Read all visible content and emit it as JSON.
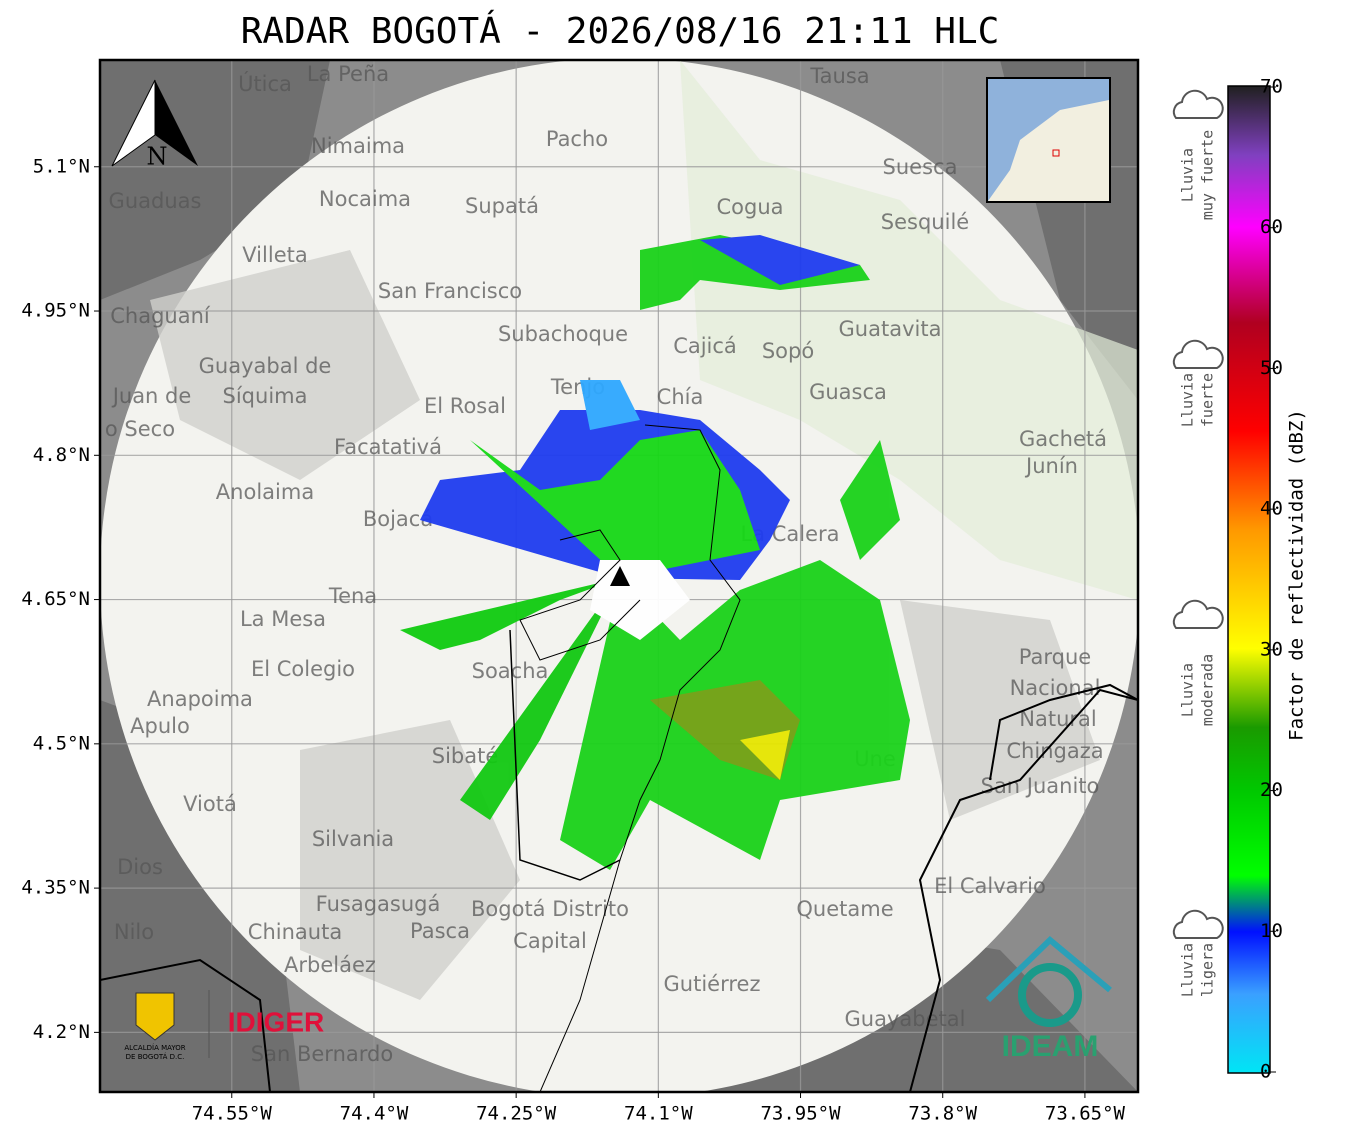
{
  "title": "RADAR BOGOTÁ - 2026/08/16 21:11 HLC",
  "map": {
    "xlim": [
      -74.689,
      -73.594
    ],
    "ylim": [
      4.138,
      5.211
    ],
    "xticks": [
      {
        "value": -74.55,
        "label": "74.55°W"
      },
      {
        "value": -74.4,
        "label": "74.4°W"
      },
      {
        "value": -74.25,
        "label": "74.25°W"
      },
      {
        "value": -74.1,
        "label": "74.1°W"
      },
      {
        "value": -73.95,
        "label": "73.95°W"
      },
      {
        "value": -73.8,
        "label": "73.8°W"
      },
      {
        "value": -73.65,
        "label": "73.65°W"
      }
    ],
    "yticks": [
      {
        "value": 5.1,
        "label": "5.1°N"
      },
      {
        "value": 4.95,
        "label": "4.95°N"
      },
      {
        "value": 4.8,
        "label": "4.8°N"
      },
      {
        "value": 4.65,
        "label": "4.65°N"
      },
      {
        "value": 4.5,
        "label": "4.5°N"
      },
      {
        "value": 4.35,
        "label": "4.35°N"
      },
      {
        "value": 4.2,
        "label": "4.2°N"
      }
    ],
    "north": "N",
    "places": [
      "La Peña",
      "Útica",
      "Tausa",
      "Pacho",
      "Nimaima",
      "Suesca",
      "Guaduas",
      "Nocaima",
      "Supatá",
      "Cogua",
      "Sesquilé",
      "Villeta",
      "San Francisco",
      "Chaguaní",
      "Guatavita",
      "Subachoque",
      "Cajicá",
      "Sopó",
      "Guayabal de",
      "Síquima",
      "El Rosal",
      "Tenjo",
      "Chía",
      "Guasca",
      "Facatativá",
      "Gachetá",
      "Junín",
      "Anolaima",
      "Bojacá",
      "La Calera",
      "Tena",
      "La Mesa",
      "Soacha",
      "Parque",
      "Nacional",
      "Natural",
      "Chingaza",
      "El Colegio",
      "Anapoima",
      "Apulo",
      "Sibaté",
      "San Juanito",
      "Viotá",
      "Silvania",
      "Une",
      "Dios",
      "El Calvario",
      "Fusagasugá",
      "Bogotá Distrito",
      "Capital",
      "Quetame",
      "Nilo",
      "Chinauta",
      "Pasca",
      "Arbeláez",
      "Gutiérrez",
      "Guayabetal",
      "San Bernardo",
      "Juan de",
      "o Seco"
    ]
  },
  "colorbar": {
    "label": "Factor de reflectividad (dBZ)",
    "lim": [
      0,
      70
    ],
    "ticks": [
      0,
      10,
      20,
      30,
      40,
      50,
      60,
      70
    ]
  },
  "rain_classes": [
    [
      "Lluvia",
      "muy fuerte"
    ],
    [
      "Lluvia",
      "fuerte"
    ],
    [
      "Lluvia",
      "moderada"
    ],
    [
      "Lluvia",
      "ligera"
    ]
  ],
  "logos": {
    "alcaldia": [
      "ALCALDÍA MAYOR",
      "DE BOGOTÁ D.C."
    ],
    "idiger": "IDIGER",
    "ideam": "IDEAM"
  }
}
